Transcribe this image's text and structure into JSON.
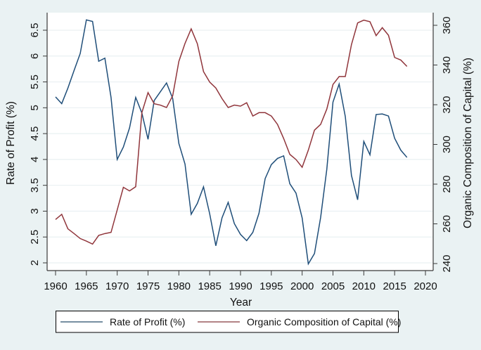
{
  "chart_data": {
    "type": "line",
    "title": "",
    "xlabel": "Year",
    "ylabel": "Rate of Profit (%)",
    "y2label": "Organic Composition of Capital (%)",
    "xlim": [
      1958.6,
      2021.2
    ],
    "ylim": [
      1.86,
      6.84
    ],
    "y2lim": [
      236.5,
      366.3
    ],
    "x_ticks": [
      1960,
      1965,
      1970,
      1975,
      1980,
      1985,
      1990,
      1995,
      2000,
      2005,
      2010,
      2015,
      2020
    ],
    "y_ticks": [
      2,
      2.5,
      3,
      3.5,
      4,
      4.5,
      5,
      5.5,
      6,
      6.5
    ],
    "y_tick_labels": [
      "2",
      "2.5",
      "3",
      "3.5",
      "4",
      "4.5",
      "5",
      "5.5",
      "6",
      "6.5"
    ],
    "y2_ticks": [
      240,
      260,
      280,
      300,
      320,
      340,
      360
    ],
    "grid": true,
    "legend_position": "bottom",
    "x": [
      1960,
      1961,
      1962,
      1963,
      1964,
      1965,
      1966,
      1967,
      1968,
      1969,
      1970,
      1971,
      1972,
      1973,
      1974,
      1975,
      1976,
      1977,
      1978,
      1979,
      1980,
      1981,
      1982,
      1983,
      1984,
      1985,
      1986,
      1987,
      1988,
      1989,
      1990,
      1991,
      1992,
      1993,
      1994,
      1995,
      1996,
      1997,
      1998,
      1999,
      2000,
      2001,
      2002,
      2003,
      2004,
      2005,
      2006,
      2007,
      2008,
      2009,
      2010,
      2011,
      2012,
      2013,
      2014,
      2015,
      2016,
      2017
    ],
    "series": [
      {
        "name": "Rate of Profit (%)",
        "axis": "left",
        "color": "#1f4e79",
        "values": [
          5.21,
          5.08,
          5.38,
          5.72,
          6.05,
          6.7,
          6.67,
          5.9,
          5.96,
          5.2,
          4.0,
          4.24,
          4.61,
          5.2,
          4.9,
          4.39,
          5.14,
          5.31,
          5.48,
          5.18,
          4.31,
          3.91,
          2.94,
          3.15,
          3.47,
          2.95,
          2.33,
          2.87,
          3.17,
          2.76,
          2.55,
          2.43,
          2.59,
          2.96,
          3.63,
          3.9,
          4.02,
          4.07,
          3.53,
          3.35,
          2.87,
          1.98,
          2.18,
          2.88,
          3.81,
          5.11,
          5.46,
          4.83,
          3.69,
          3.22,
          4.35,
          4.09,
          4.87,
          4.88,
          4.84,
          4.41,
          4.18,
          4.04
        ]
      },
      {
        "name": "Organic Composition of Capital (%)",
        "axis": "right",
        "color": "#90353b",
        "values": [
          262.2,
          264.8,
          257.5,
          255.1,
          252.6,
          251.3,
          249.8,
          254.2,
          255.1,
          255.7,
          267.0,
          278.4,
          276.6,
          278.7,
          316.0,
          326.1,
          320.5,
          319.8,
          318.6,
          324.5,
          341.8,
          350.9,
          358.2,
          350.7,
          336.7,
          331.4,
          328.4,
          323.1,
          318.6,
          319.8,
          319.3,
          321.0,
          314.3,
          316.0,
          316.0,
          314.3,
          310.1,
          303.0,
          295.0,
          292.4,
          288.5,
          297.1,
          307.2,
          310.1,
          317.8,
          330.2,
          334.2,
          334.2,
          350.3,
          361.2,
          362.6,
          361.8,
          354.8,
          358.8,
          355.0,
          343.8,
          342.5,
          339.3
        ]
      }
    ]
  },
  "legend": {
    "items": [
      "Rate of Profit (%)",
      "Organic Composition of Capital (%)"
    ]
  }
}
